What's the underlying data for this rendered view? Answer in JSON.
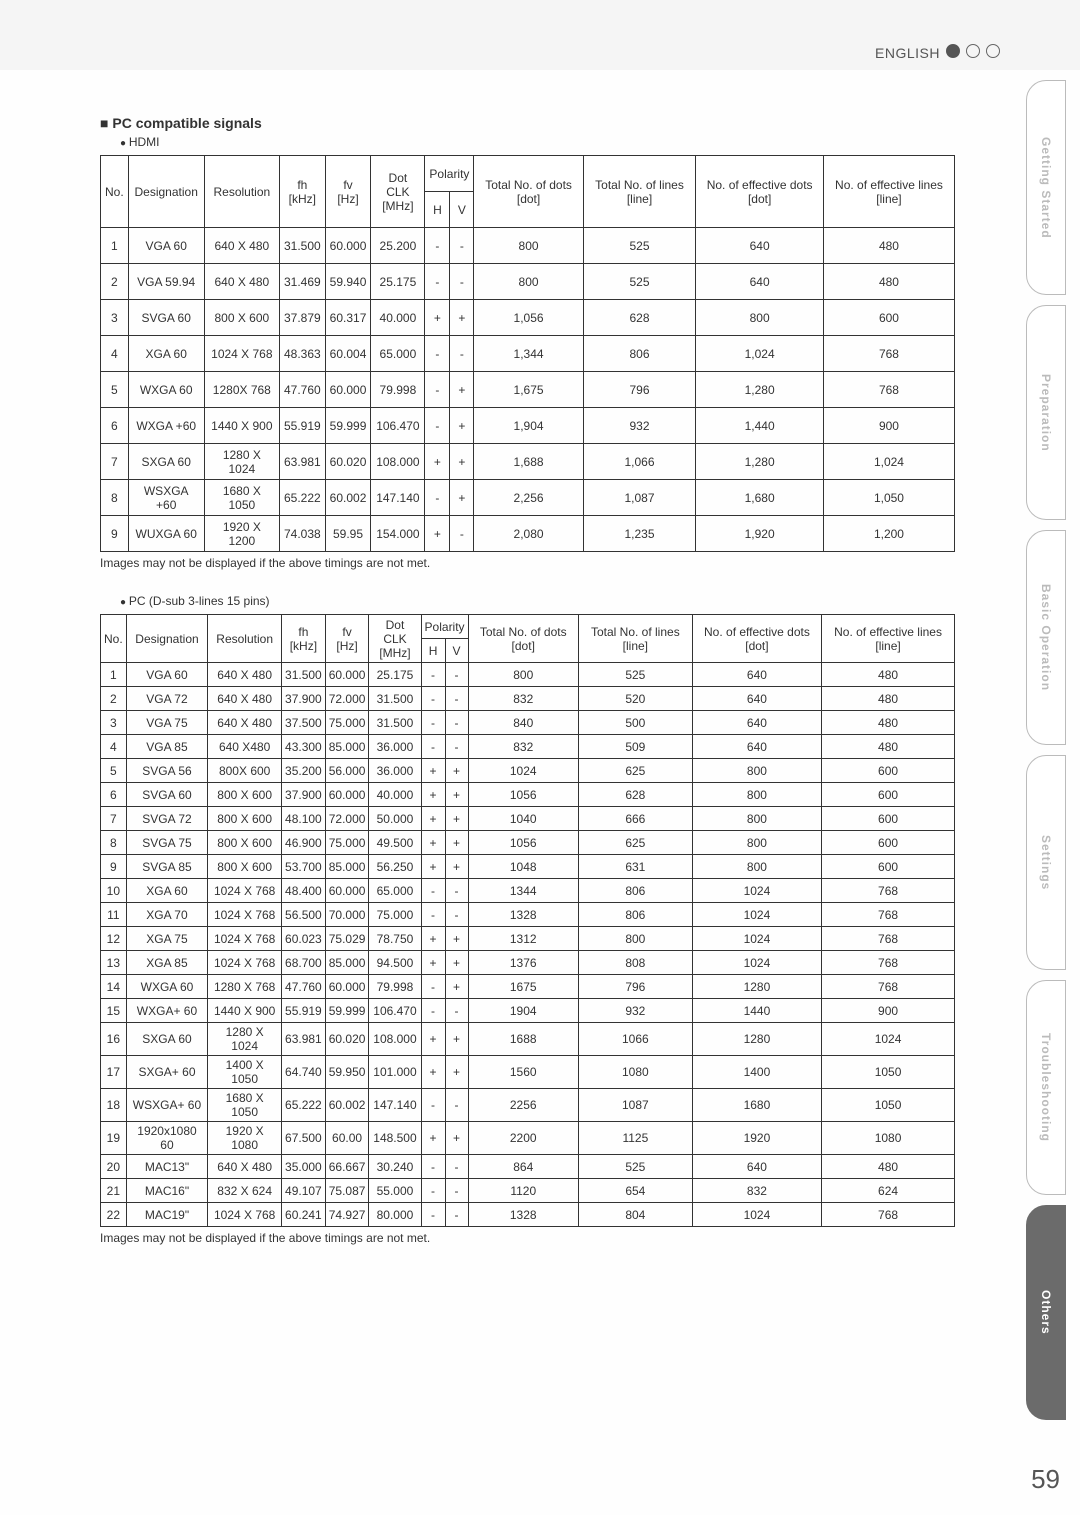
{
  "header": {
    "lang": "ENGLISH",
    "page": "59"
  },
  "sidebar": {
    "tabs": [
      "Getting Started",
      "Preparation",
      "Basic Operation",
      "Settings",
      "Troubleshooting",
      "Others"
    ],
    "active_index": 5
  },
  "section1": {
    "heading": "PC compatible signals",
    "bullet": "HDMI",
    "note": "Images may not be displayed if the above timings are not met.",
    "cols": {
      "no": "No.",
      "desig": "Designation",
      "res": "Resolution",
      "fh1": "fh",
      "fh2": "[kHz]",
      "fv1": "fv",
      "fv2": "[Hz]",
      "dot1": "Dot CLK",
      "dot2": "[MHz]",
      "pol": "Polarity",
      "h": "H",
      "v": "V",
      "td1": "Total No. of dots [dot]",
      "tl1": "Total No. of lines [line]",
      "ed1": "No. of effective dots [dot]",
      "el1": "No. of effective lines [line]"
    },
    "rows": [
      {
        "no": "1",
        "d": "VGA 60",
        "r": "640 X 480",
        "fh": "31.500",
        "fv": "60.000",
        "dc": "25.200",
        "h": "-",
        "v": "-",
        "td": "800",
        "tl": "525",
        "ed": "640",
        "el": "480"
      },
      {
        "no": "2",
        "d": "VGA 59.94",
        "r": "640 X 480",
        "fh": "31.469",
        "fv": "59.940",
        "dc": "25.175",
        "h": "-",
        "v": "-",
        "td": "800",
        "tl": "525",
        "ed": "640",
        "el": "480"
      },
      {
        "no": "3",
        "d": "SVGA 60",
        "r": "800 X 600",
        "fh": "37.879",
        "fv": "60.317",
        "dc": "40.000",
        "h": "+",
        "v": "+",
        "td": "1,056",
        "tl": "628",
        "ed": "800",
        "el": "600"
      },
      {
        "no": "4",
        "d": "XGA 60",
        "r": "1024 X 768",
        "fh": "48.363",
        "fv": "60.004",
        "dc": "65.000",
        "h": "-",
        "v": "-",
        "td": "1,344",
        "tl": "806",
        "ed": "1,024",
        "el": "768"
      },
      {
        "no": "5",
        "d": "WXGA 60",
        "r": "1280X 768",
        "fh": "47.760",
        "fv": "60.000",
        "dc": "79.998",
        "h": "-",
        "v": "+",
        "td": "1,675",
        "tl": "796",
        "ed": "1,280",
        "el": "768"
      },
      {
        "no": "6",
        "d": "WXGA +60",
        "r": "1440 X 900",
        "fh": "55.919",
        "fv": "59.999",
        "dc": "106.470",
        "h": "-",
        "v": "+",
        "td": "1,904",
        "tl": "932",
        "ed": "1,440",
        "el": "900"
      },
      {
        "no": "7",
        "d": "SXGA 60",
        "r": "1280 X 1024",
        "fh": "63.981",
        "fv": "60.020",
        "dc": "108.000",
        "h": "+",
        "v": "+",
        "td": "1,688",
        "tl": "1,066",
        "ed": "1,280",
        "el": "1,024"
      },
      {
        "no": "8",
        "d": "WSXGA +60",
        "r": "1680 X 1050",
        "fh": "65.222",
        "fv": "60.002",
        "dc": "147.140",
        "h": "-",
        "v": "+",
        "td": "2,256",
        "tl": "1,087",
        "ed": "1,680",
        "el": "1,050"
      },
      {
        "no": "9",
        "d": "WUXGA 60",
        "r": "1920 X 1200",
        "fh": "74.038",
        "fv": "59.95",
        "dc": "154.000",
        "h": "+",
        "v": "-",
        "td": "2,080",
        "tl": "1,235",
        "ed": "1,920",
        "el": "1,200"
      }
    ]
  },
  "section2": {
    "bullet": "PC (D-sub 3-lines 15 pins)",
    "note": "Images may not be displayed if the above timings are not met.",
    "rows": [
      {
        "no": "1",
        "d": "VGA 60",
        "r": "640 X 480",
        "fh": "31.500",
        "fv": "60.000",
        "dc": "25.175",
        "h": "-",
        "v": "-",
        "td": "800",
        "tl": "525",
        "ed": "640",
        "el": "480"
      },
      {
        "no": "2",
        "d": "VGA 72",
        "r": "640 X 480",
        "fh": "37.900",
        "fv": "72.000",
        "dc": "31.500",
        "h": "-",
        "v": "-",
        "td": "832",
        "tl": "520",
        "ed": "640",
        "el": "480"
      },
      {
        "no": "3",
        "d": "VGA 75",
        "r": "640 X 480",
        "fh": "37.500",
        "fv": "75.000",
        "dc": "31.500",
        "h": "-",
        "v": "-",
        "td": "840",
        "tl": "500",
        "ed": "640",
        "el": "480"
      },
      {
        "no": "4",
        "d": "VGA 85",
        "r": "640 X480",
        "fh": "43.300",
        "fv": "85.000",
        "dc": "36.000",
        "h": "-",
        "v": "-",
        "td": "832",
        "tl": "509",
        "ed": "640",
        "el": "480"
      },
      {
        "no": "5",
        "d": "SVGA 56",
        "r": "800X 600",
        "fh": "35.200",
        "fv": "56.000",
        "dc": "36.000",
        "h": "+",
        "v": "+",
        "td": "1024",
        "tl": "625",
        "ed": "800",
        "el": "600"
      },
      {
        "no": "6",
        "d": "SVGA 60",
        "r": "800 X 600",
        "fh": "37.900",
        "fv": "60.000",
        "dc": "40.000",
        "h": "+",
        "v": "+",
        "td": "1056",
        "tl": "628",
        "ed": "800",
        "el": "600"
      },
      {
        "no": "7",
        "d": "SVGA 72",
        "r": "800 X 600",
        "fh": "48.100",
        "fv": "72.000",
        "dc": "50.000",
        "h": "+",
        "v": "+",
        "td": "1040",
        "tl": "666",
        "ed": "800",
        "el": "600"
      },
      {
        "no": "8",
        "d": "SVGA 75",
        "r": "800 X 600",
        "fh": "46.900",
        "fv": "75.000",
        "dc": "49.500",
        "h": "+",
        "v": "+",
        "td": "1056",
        "tl": "625",
        "ed": "800",
        "el": "600"
      },
      {
        "no": "9",
        "d": "SVGA 85",
        "r": "800 X 600",
        "fh": "53.700",
        "fv": "85.000",
        "dc": "56.250",
        "h": "+",
        "v": "+",
        "td": "1048",
        "tl": "631",
        "ed": "800",
        "el": "600"
      },
      {
        "no": "10",
        "d": "XGA 60",
        "r": "1024 X 768",
        "fh": "48.400",
        "fv": "60.000",
        "dc": "65.000",
        "h": "-",
        "v": "-",
        "td": "1344",
        "tl": "806",
        "ed": "1024",
        "el": "768"
      },
      {
        "no": "11",
        "d": "XGA 70",
        "r": "1024 X 768",
        "fh": "56.500",
        "fv": "70.000",
        "dc": "75.000",
        "h": "-",
        "v": "-",
        "td": "1328",
        "tl": "806",
        "ed": "1024",
        "el": "768"
      },
      {
        "no": "12",
        "d": "XGA 75",
        "r": "1024 X 768",
        "fh": "60.023",
        "fv": "75.029",
        "dc": "78.750",
        "h": "+",
        "v": "+",
        "td": "1312",
        "tl": "800",
        "ed": "1024",
        "el": "768"
      },
      {
        "no": "13",
        "d": "XGA 85",
        "r": "1024 X 768",
        "fh": "68.700",
        "fv": "85.000",
        "dc": "94.500",
        "h": "+",
        "v": "+",
        "td": "1376",
        "tl": "808",
        "ed": "1024",
        "el": "768"
      },
      {
        "no": "14",
        "d": "WXGA 60",
        "r": "1280 X 768",
        "fh": "47.760",
        "fv": "60.000",
        "dc": "79.998",
        "h": "-",
        "v": "+",
        "td": "1675",
        "tl": "796",
        "ed": "1280",
        "el": "768"
      },
      {
        "no": "15",
        "d": "WXGA+ 60",
        "r": "1440 X 900",
        "fh": "55.919",
        "fv": "59.999",
        "dc": "106.470",
        "h": "-",
        "v": "-",
        "td": "1904",
        "tl": "932",
        "ed": "1440",
        "el": "900"
      },
      {
        "no": "16",
        "d": "SXGA 60",
        "r": "1280 X 1024",
        "fh": "63.981",
        "fv": "60.020",
        "dc": "108.000",
        "h": "+",
        "v": "+",
        "td": "1688",
        "tl": "1066",
        "ed": "1280",
        "el": "1024"
      },
      {
        "no": "17",
        "d": "SXGA+ 60",
        "r": "1400 X 1050",
        "fh": "64.740",
        "fv": "59.950",
        "dc": "101.000",
        "h": "+",
        "v": "+",
        "td": "1560",
        "tl": "1080",
        "ed": "1400",
        "el": "1050"
      },
      {
        "no": "18",
        "d": "WSXGA+ 60",
        "r": "1680 X 1050",
        "fh": "65.222",
        "fv": "60.002",
        "dc": "147.140",
        "h": "-",
        "v": "-",
        "td": "2256",
        "tl": "1087",
        "ed": "1680",
        "el": "1050"
      },
      {
        "no": "19",
        "d": "1920x1080 60",
        "r": "1920 X 1080",
        "fh": "67.500",
        "fv": "60.00",
        "dc": "148.500",
        "h": "+",
        "v": "+",
        "td": "2200",
        "tl": "1125",
        "ed": "1920",
        "el": "1080"
      },
      {
        "no": "20",
        "d": "MAC13\"",
        "r": "640 X 480",
        "fh": "35.000",
        "fv": "66.667",
        "dc": "30.240",
        "h": "-",
        "v": "-",
        "td": "864",
        "tl": "525",
        "ed": "640",
        "el": "480"
      },
      {
        "no": "21",
        "d": "MAC16\"",
        "r": "832 X 624",
        "fh": "49.107",
        "fv": "75.087",
        "dc": "55.000",
        "h": "-",
        "v": "-",
        "td": "1120",
        "tl": "654",
        "ed": "832",
        "el": "624"
      },
      {
        "no": "22",
        "d": "MAC19\"",
        "r": "1024 X 768",
        "fh": "60.241",
        "fv": "74.927",
        "dc": "80.000",
        "h": "-",
        "v": "-",
        "td": "1328",
        "tl": "804",
        "ed": "1024",
        "el": "768"
      }
    ]
  }
}
